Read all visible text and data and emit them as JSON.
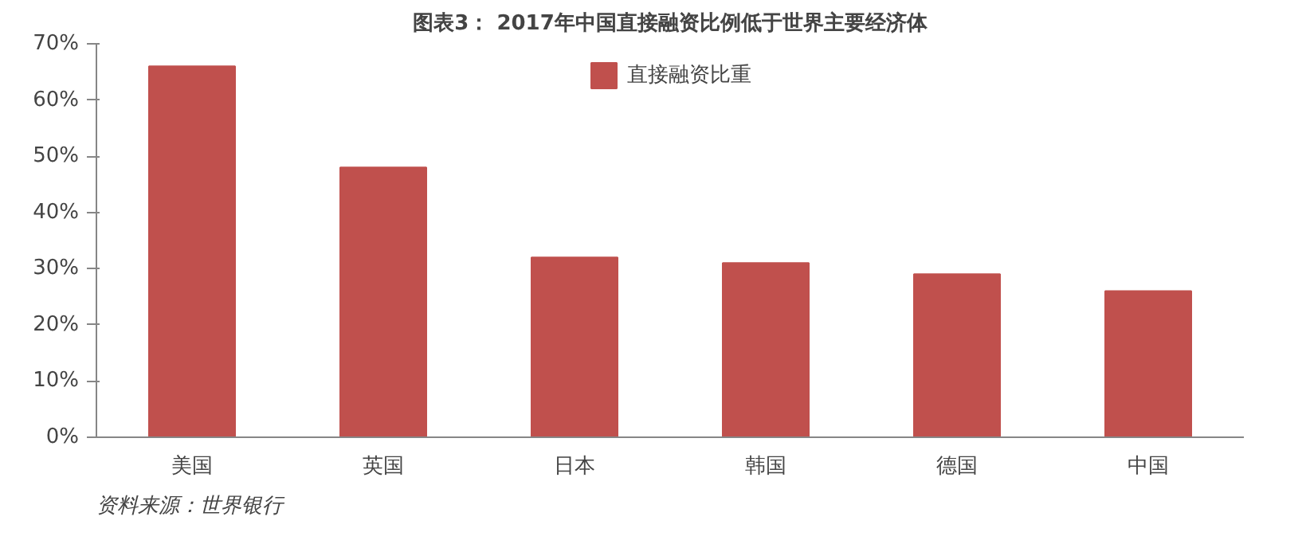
{
  "chart_data": {
    "type": "bar",
    "title": "图表3： 2017年中国直接融资比例低于世界主要经济体",
    "categories": [
      "美国",
      "英国",
      "日本",
      "韩国",
      "德国",
      "中国"
    ],
    "series": [
      {
        "name": "直接融资比重",
        "color": "#c0504d",
        "values": [
          66,
          48,
          32,
          31,
          29,
          26
        ]
      }
    ],
    "ylim": [
      0,
      70
    ],
    "yticks": [
      {
        "value": 0,
        "label": "0%"
      },
      {
        "value": 10,
        "label": "10%"
      },
      {
        "value": 20,
        "label": "20%"
      },
      {
        "value": 30,
        "label": "30%"
      },
      {
        "value": 40,
        "label": "40%"
      },
      {
        "value": 50,
        "label": "50%"
      },
      {
        "value": 60,
        "label": "60%"
      },
      {
        "value": 70,
        "label": "70%"
      }
    ],
    "grid": false,
    "legend": "top",
    "annotations": [
      "资料来源：世界银行"
    ]
  }
}
